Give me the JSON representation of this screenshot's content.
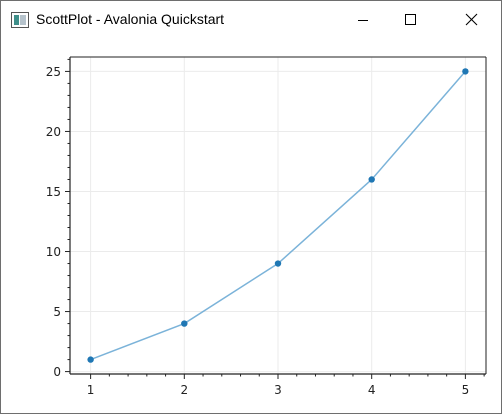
{
  "window": {
    "title": "ScottPlot - Avalonia Quickstart",
    "controls": [
      "minimize-icon",
      "maximize-icon",
      "close-icon"
    ]
  },
  "colors": {
    "series_line": "#7bb3d9",
    "series_marker": "#1f77b4",
    "grid": "#ebebeb",
    "axis": "#222222"
  },
  "chart_data": {
    "type": "scatter",
    "title": "",
    "xlabel": "",
    "ylabel": "",
    "x": [
      1,
      2,
      3,
      4,
      5
    ],
    "series": [
      {
        "values": [
          1,
          4,
          9,
          16,
          25
        ]
      }
    ],
    "xlim": [
      0.78,
      5.22
    ],
    "ylim": [
      -0.2,
      26.2
    ],
    "x_ticks": [
      "1",
      "2",
      "3",
      "4",
      "5"
    ],
    "y_ticks": [
      "0",
      "5",
      "10",
      "15",
      "20",
      "25"
    ],
    "grid": true,
    "legend": "none"
  }
}
